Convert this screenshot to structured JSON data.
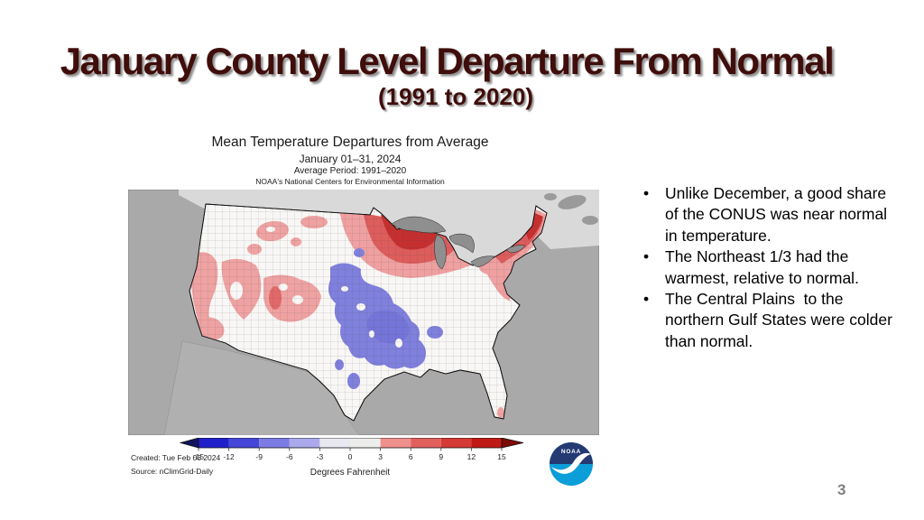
{
  "slide": {
    "title": "January County Level Departure From Normal",
    "subtitle": "(1991 to 2020)",
    "title_color": "#3f0d0a",
    "page_number": "3"
  },
  "figure": {
    "heading1": "Mean Temperature Departures from Average",
    "heading2": "January 01–31, 2024",
    "heading3": "Average Period: 1991–2020",
    "heading4": "NOAA's National Centers for Environmental Information",
    "created": "Created: Tue Feb 06 2024",
    "source": "Source: nClimGrid-Daily",
    "degrees_label": "Degrees Fahrenheit",
    "logo_text": "NOAA"
  },
  "bullets": [
    "Unlike December, a good share of the CONUS was near normal in temperature.",
    "The Northeast 1/3 had the warmest, relative to normal.",
    "The Central Plains  to the northern Gulf States were colder than normal."
  ],
  "chart_data": {
    "type": "heatmap",
    "title": "Mean Temperature Departures from Average",
    "subtitle": "January 01–31, 2024",
    "average_period": "Average Period: 1991–2020",
    "units": "Degrees Fahrenheit",
    "colorbar": {
      "ticks": [
        -15,
        -12,
        -9,
        -6,
        -3,
        0,
        3,
        6,
        9,
        12,
        15
      ],
      "segment_colors": [
        "#2020cb",
        "#4646d9",
        "#7b7be3",
        "#a9a9ec",
        "#e8e8f0",
        "#ededeb",
        "#f0908d",
        "#e2605c",
        "#d53a36",
        "#bf1a16"
      ],
      "under_arrow_color": "#14145e",
      "over_arrow_color": "#7d0b08",
      "label": "Degrees Fahrenheit"
    },
    "regions": [
      {
        "area": "Upper Midwest (eastern ND, MN, WI, Upper MI)",
        "departure_f": "+3 to +15",
        "tone": "red"
      },
      {
        "area": "Northeast (NY, New England; Maine warmest)",
        "departure_f": "+3 to +12",
        "tone": "red"
      },
      {
        "area": "West Coast / Great Basin (OR, coastal CA, NV, UT, western CO)",
        "departure_f": "+3 to +9",
        "tone": "pink"
      },
      {
        "area": "Central Plains to Mid-South (NE, KS, OK, MO, AR, northern MS)",
        "departure_f": "-3 to -6",
        "tone": "blue"
      },
      {
        "area": "Remainder of CONUS",
        "departure_f": "-3 to +3",
        "tone": "near-normal white"
      }
    ]
  },
  "map_colors": {
    "ocean": "#a9a9a9",
    "canada": "#d9d9d9",
    "mexico": "#b0b0b0",
    "dark_land": "#9a9a9a",
    "lakes": "#8f8f8f",
    "land": "#f8f7f5",
    "red_light": "#efa0a0",
    "red_mid": "#dd5c5c",
    "red_dark": "#c62f2f",
    "pink": "#efa2a2",
    "pink_core": "#e26969",
    "blue_mid": "#8080dd",
    "blue_dark": "#6c6cd6"
  }
}
